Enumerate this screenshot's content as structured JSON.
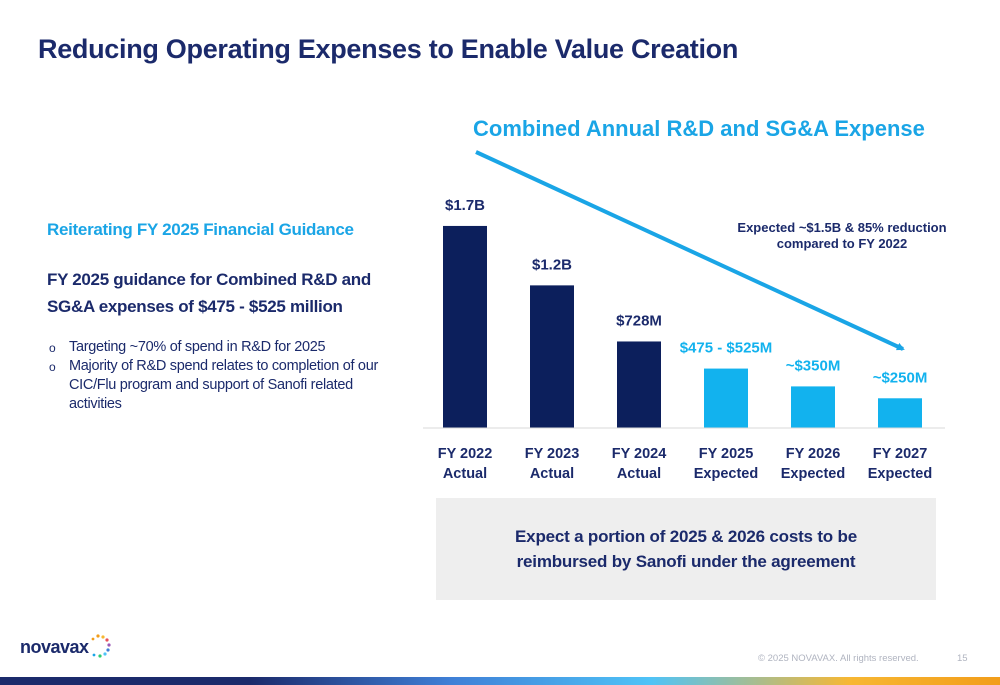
{
  "slide": {
    "title": "Reducing Operating Expenses to Enable Value Creation",
    "page_number": "15",
    "copyright": "© 2025 NOVAVAX. All rights reserved."
  },
  "left_panel": {
    "heading": "Reiterating FY 2025 Financial Guidance",
    "guidance": "FY 2025 guidance for Combined R&D and SG&A expenses of $475 - $525 million",
    "bullets": [
      {
        "marker": "o",
        "text": "Targeting ~70% of spend in R&D for 2025"
      },
      {
        "marker": "o",
        "text": "Majority of R&D spend relates to completion of our CIC/Flu program and support of Sanofi related activities"
      }
    ]
  },
  "note": {
    "text": "Expect a portion of 2025 & 2026 costs to be reimbursed by Sanofi under the agreement"
  },
  "logo": {
    "word": "novavax"
  },
  "colors": {
    "actual": "#0c1f5c",
    "expected": "#12b2ee",
    "title": "#1b2a6b",
    "accent": "#1aa5e6",
    "trend_arrow": "#1aa5e6"
  },
  "chart_data": {
    "type": "bar",
    "title": "Combined Annual R&D and SG&A Expense",
    "categories": [
      [
        "FY 2022",
        "Actual"
      ],
      [
        "FY 2023",
        "Actual"
      ],
      [
        "FY 2024",
        "Actual"
      ],
      [
        "FY 2025",
        "Expected"
      ],
      [
        "FY 2026",
        "Expected"
      ],
      [
        "FY 2027",
        "Expected"
      ]
    ],
    "values_musd": [
      1700,
      1200,
      728,
      500,
      350,
      250
    ],
    "data_labels": [
      "$1.7B",
      "$1.2B",
      "$728M",
      "$475 - $525M",
      "~$350M",
      "~$250M"
    ],
    "status": [
      "Actual",
      "Actual",
      "Actual",
      "Expected",
      "Expected",
      "Expected"
    ],
    "unit": "$M",
    "ylim": [
      0,
      1750
    ],
    "grid": false,
    "annotation": "Expected ~$1.5B & 85% reduction compared to FY 2022",
    "trend_arrow": {
      "from": "FY 2022",
      "to": "FY 2027",
      "direction": "down"
    }
  }
}
